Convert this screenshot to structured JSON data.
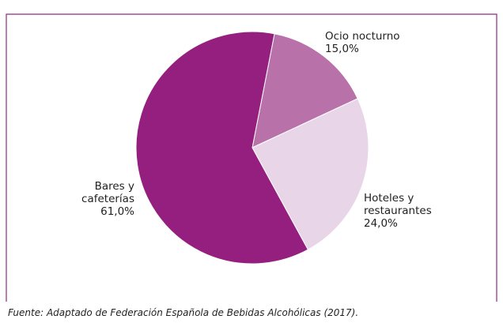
{
  "chart_data": {
    "type": "pie",
    "categories": [
      "Ocio nocturno",
      "Hoteles y restaurantes",
      "Bares y cafeterías"
    ],
    "values": [
      15.0,
      24.0,
      61.0
    ],
    "value_labels": [
      "15,0%",
      "24,0%",
      "61,0%"
    ],
    "colors": [
      "#b871a9",
      "#e8d6e8",
      "#951f7f"
    ],
    "startangle": 11,
    "source": "Fuente: Adaptado de Federación Española de Bebidas Alcohólicas (2017)."
  }
}
